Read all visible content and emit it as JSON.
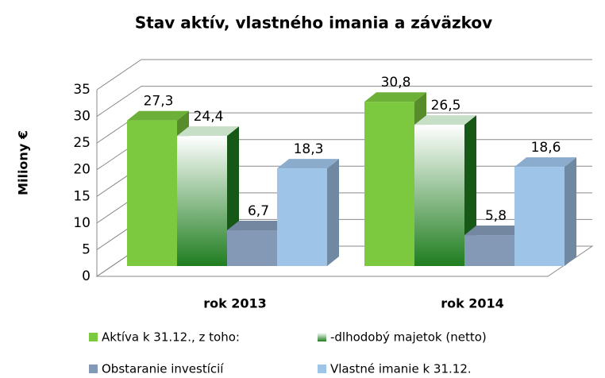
{
  "chart_data": {
    "type": "bar3d",
    "title": "Stav aktív, vlastného imania a záväzkov",
    "y_label": "Miliony €",
    "categories": [
      "rok 2013",
      "rok 2014"
    ],
    "series": [
      {
        "name": "Aktíva k 31.12., z toho:",
        "color": "#7cc83e",
        "values": [
          27.3,
          30.8
        ],
        "value_labels": [
          "27,3",
          "30,8"
        ]
      },
      {
        "name": "-dlhodobý majetok (netto)",
        "color": "#1f7d1f",
        "values": [
          24.4,
          26.5
        ],
        "value_labels": [
          "24,4",
          "26,5"
        ]
      },
      {
        "name": "Obstaranie investícií",
        "color": "#8499b6",
        "values": [
          6.7,
          5.8
        ],
        "value_labels": [
          "6,7",
          "5,8"
        ]
      },
      {
        "name": "Vlastné imanie k 31.12.",
        "color": "#9ec4e8",
        "values": [
          18.3,
          18.6
        ],
        "value_labels": [
          "18,3",
          "18,6"
        ]
      }
    ],
    "ylim": [
      0,
      35
    ],
    "yticks": [
      0,
      5,
      10,
      15,
      20,
      25,
      30,
      35
    ],
    "grid": true
  }
}
